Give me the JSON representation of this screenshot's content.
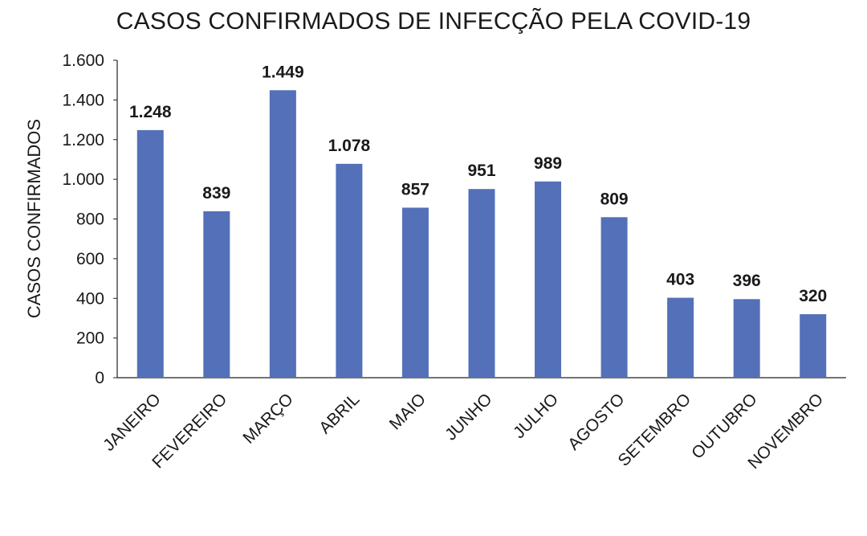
{
  "chart_data": {
    "type": "bar",
    "title": "CASOS CONFIRMADOS DE INFECÇÃO PELA COVID-19",
    "xlabel": "",
    "ylabel": "CASOS CONFIRMADOS",
    "categories": [
      "JANEIRO",
      "FEVEREIRO",
      "MARÇO",
      "ABRIL",
      "MAIO",
      "JUNHO",
      "JULHO",
      "AGOSTO",
      "SETEMBRO",
      "OUTUBRO",
      "NOVEMBRO"
    ],
    "values": [
      1248,
      839,
      1449,
      1078,
      857,
      951,
      989,
      809,
      403,
      396,
      320
    ],
    "data_labels": [
      "1.248",
      "839",
      "1.449",
      "1.078",
      "857",
      "951",
      "989",
      "809",
      "403",
      "396",
      "320"
    ],
    "ylim": [
      0,
      1600
    ],
    "yticks": [
      0,
      200,
      400,
      600,
      800,
      1000,
      1200,
      1400,
      1600
    ],
    "ytick_labels": [
      "0",
      "200",
      "400",
      "600",
      "800",
      "1.000",
      "1.200",
      "1.400",
      "1.600"
    ],
    "bar_color": "#5470b8",
    "grid": false,
    "legend": "none"
  }
}
